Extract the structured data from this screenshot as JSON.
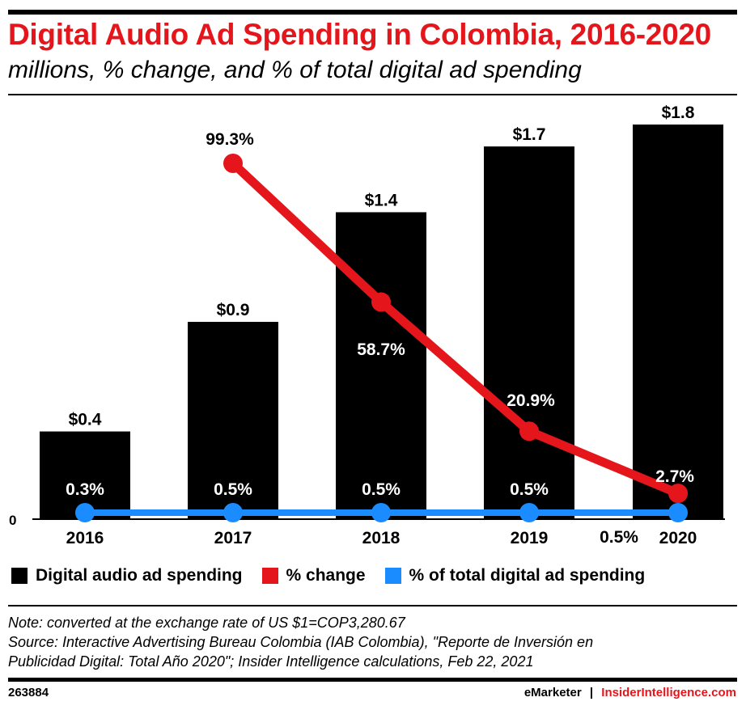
{
  "title": "Digital Audio Ad Spending in Colombia, 2016-2020",
  "subtitle": "millions, % change, and % of total digital ad spending",
  "colors": {
    "bar": "#000000",
    "change": "#e4161c",
    "share": "#1a8cff",
    "title": "#e4161c"
  },
  "chart_data": {
    "type": "bar",
    "categories": [
      "2016",
      "2017",
      "2018",
      "2019",
      "2020"
    ],
    "series": [
      {
        "name": "Digital audio ad spending",
        "type": "bar",
        "values": [
          0.4,
          0.9,
          1.4,
          1.7,
          1.8
        ],
        "labels": [
          "$0.4",
          "$0.9",
          "$1.4",
          "$1.7",
          "$1.8"
        ]
      },
      {
        "name": "% change",
        "type": "line",
        "values": [
          null,
          99.3,
          58.7,
          20.9,
          2.7
        ],
        "labels": [
          "",
          "99.3%",
          "58.7%",
          "20.9%",
          "2.7%"
        ]
      },
      {
        "name": "% of total digital ad spending",
        "type": "line",
        "values": [
          0.3,
          0.5,
          0.5,
          0.5,
          0.5
        ],
        "labels": [
          "0.3%",
          "0.5%",
          "0.5%",
          "0.5%",
          "0.5%"
        ]
      }
    ],
    "y_tick_label": "0",
    "ylim": [
      0,
      1.8
    ]
  },
  "legend": {
    "bar": "Digital audio ad spending",
    "change": "% change",
    "share": "% of total digital ad spending"
  },
  "note": {
    "line1": "Note: converted at the exchange rate of US $1=COP3,280.67",
    "line2": "Source: Interactive Advertising Bureau Colombia (IAB Colombia), \"Reporte de Inversión en",
    "line3": "Publicidad Digital: Total Año 2020\"; Insider Intelligence calculations, Feb 22, 2021"
  },
  "footer": {
    "id": "263884",
    "brand": "eMarketer",
    "separator": "|",
    "brand2": "InsiderIntelligence.com"
  }
}
